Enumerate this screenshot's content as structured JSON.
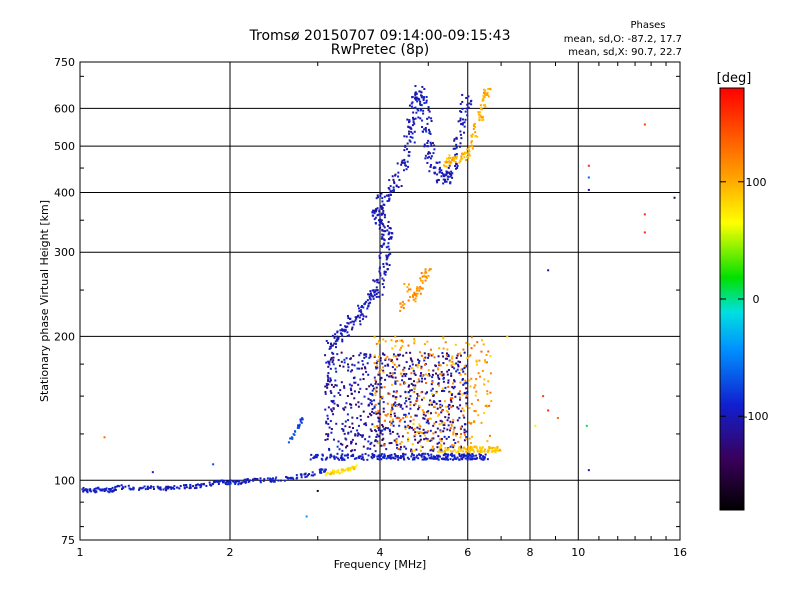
{
  "chart_data": {
    "type": "scatter",
    "title": "Tromsø 20150707 09:14:00-09:15:43",
    "subtitle": "RwPretec (8p)",
    "xlabel": "Frequency [MHz]",
    "ylabel": "Stationary phase Virtual Height [km]",
    "x_scale": "log",
    "y_scale": "log",
    "xlim": [
      1,
      16
    ],
    "ylim": [
      75,
      750
    ],
    "x_ticks": [
      1,
      2,
      4,
      6,
      8,
      10,
      16
    ],
    "x_tick_labels": [
      "1",
      "2",
      "4",
      "6",
      "8",
      "10",
      "16"
    ],
    "y_ticks": [
      75,
      100,
      200,
      300,
      400,
      500,
      600,
      750
    ],
    "y_tick_labels": [
      "75",
      "100",
      "200",
      "300",
      "400",
      "500",
      "600",
      "750"
    ],
    "grid": true,
    "phases_box": {
      "title": "Phases",
      "line_o": "mean, sd,O: -87.2, 17.7",
      "line_x": "mean, sd,X:  90.7, 22.7"
    },
    "colorbar": {
      "label": "[deg]",
      "range": [
        -180,
        180
      ],
      "ticks": [
        100,
        0,
        -100
      ],
      "tick_labels": [
        "100",
        "0",
        "-100"
      ],
      "colormap": "rainbow"
    },
    "o_trace_floor": {
      "phase_deg": -95,
      "points": [
        [
          1.0,
          96
        ],
        [
          1.05,
          95
        ],
        [
          1.1,
          96
        ],
        [
          1.15,
          95
        ],
        [
          1.2,
          97
        ],
        [
          1.3,
          96
        ],
        [
          1.4,
          97
        ],
        [
          1.5,
          96
        ],
        [
          1.6,
          97
        ],
        [
          1.7,
          97
        ],
        [
          1.8,
          98
        ],
        [
          1.9,
          99
        ],
        [
          2.0,
          99
        ],
        [
          2.1,
          99
        ],
        [
          2.2,
          100
        ],
        [
          2.4,
          100
        ],
        [
          2.6,
          101
        ],
        [
          2.8,
          102
        ],
        [
          3.0,
          104
        ],
        [
          3.1,
          105
        ]
      ]
    },
    "o_trace_main": {
      "phase_deg": -100,
      "points": [
        [
          3.2,
          190
        ],
        [
          3.3,
          200
        ],
        [
          3.45,
          210
        ],
        [
          3.6,
          220
        ],
        [
          3.8,
          235
        ],
        [
          3.95,
          250
        ],
        [
          4.05,
          275
        ],
        [
          4.1,
          300
        ],
        [
          4.15,
          330
        ],
        [
          4.05,
          345
        ],
        [
          3.95,
          360
        ],
        [
          4.0,
          380
        ],
        [
          4.2,
          400
        ],
        [
          4.4,
          440
        ],
        [
          4.55,
          500
        ],
        [
          4.65,
          560
        ],
        [
          4.75,
          620
        ],
        [
          4.8,
          650
        ],
        [
          4.9,
          600
        ],
        [
          5.0,
          520
        ],
        [
          5.1,
          460
        ],
        [
          5.3,
          430
        ],
        [
          5.5,
          430
        ],
        [
          5.7,
          480
        ],
        [
          5.85,
          560
        ],
        [
          6.0,
          640
        ]
      ]
    },
    "x_trace_main": {
      "phase_deg": 100,
      "points": [
        [
          5.4,
          460
        ],
        [
          5.6,
          470
        ],
        [
          5.8,
          470
        ],
        [
          6.0,
          480
        ],
        [
          6.2,
          530
        ],
        [
          6.4,
          580
        ],
        [
          6.5,
          640
        ],
        [
          6.6,
          660
        ]
      ]
    },
    "o_scatter_cloud": {
      "phase_deg": -110,
      "f_range": [
        3.1,
        6.0
      ],
      "h_range": [
        115,
        185
      ]
    },
    "x_scatter_cloud": {
      "phase_deg": 110,
      "f_range": [
        3.9,
        6.7
      ],
      "h_range": [
        115,
        200
      ]
    },
    "x_low_trace": {
      "phase_deg": 80,
      "points": [
        [
          3.1,
          102
        ],
        [
          3.2,
          104
        ],
        [
          3.3,
          104
        ],
        [
          3.4,
          105
        ],
        [
          3.5,
          106
        ],
        [
          3.6,
          107
        ]
      ]
    },
    "o_floor_band": {
      "phase_deg": -95,
      "f_range": [
        2.9,
        6.6
      ],
      "h": 112
    },
    "x_floor_band": {
      "phase_deg": 90,
      "f_range": [
        5.2,
        7.0
      ],
      "h": 116
    },
    "o_cusp_1": {
      "phase_deg": -80,
      "points": [
        [
          2.6,
          120
        ],
        [
          2.7,
          125
        ],
        [
          2.75,
          130
        ],
        [
          2.8,
          135
        ]
      ]
    },
    "x_patch_mid": {
      "phase_deg": 110,
      "points": [
        [
          4.4,
          230
        ],
        [
          4.6,
          240
        ],
        [
          4.8,
          250
        ],
        [
          4.9,
          265
        ],
        [
          5.0,
          280
        ],
        [
          4.7,
          235
        ],
        [
          4.5,
          255
        ]
      ]
    },
    "sparse_points": [
      {
        "x": 1.12,
        "y": 123,
        "phase_deg": 130
      },
      {
        "x": 1.4,
        "y": 104,
        "phase_deg": -90
      },
      {
        "x": 1.85,
        "y": 108,
        "phase_deg": -70
      },
      {
        "x": 2.85,
        "y": 84,
        "phase_deg": -40
      },
      {
        "x": 3.0,
        "y": 95,
        "phase_deg": -160
      },
      {
        "x": 8.7,
        "y": 140,
        "phase_deg": 160
      },
      {
        "x": 9.1,
        "y": 135,
        "phase_deg": 130
      },
      {
        "x": 10.5,
        "y": 455,
        "phase_deg": 160
      },
      {
        "x": 10.5,
        "y": 430,
        "phase_deg": -60
      },
      {
        "x": 10.5,
        "y": 405,
        "phase_deg": -110
      },
      {
        "x": 10.5,
        "y": 105,
        "phase_deg": -100
      },
      {
        "x": 8.7,
        "y": 275,
        "phase_deg": -110
      },
      {
        "x": 13.6,
        "y": 555,
        "phase_deg": 150
      },
      {
        "x": 13.6,
        "y": 360,
        "phase_deg": 160
      },
      {
        "x": 13.6,
        "y": 330,
        "phase_deg": 160
      },
      {
        "x": 15.6,
        "y": 390,
        "phase_deg": -150
      },
      {
        "x": 10.4,
        "y": 130,
        "phase_deg": 10
      },
      {
        "x": 8.2,
        "y": 130,
        "phase_deg": 60
      },
      {
        "x": 8.5,
        "y": 150,
        "phase_deg": 150
      },
      {
        "x": 7.2,
        "y": 200,
        "phase_deg": 90
      }
    ]
  }
}
